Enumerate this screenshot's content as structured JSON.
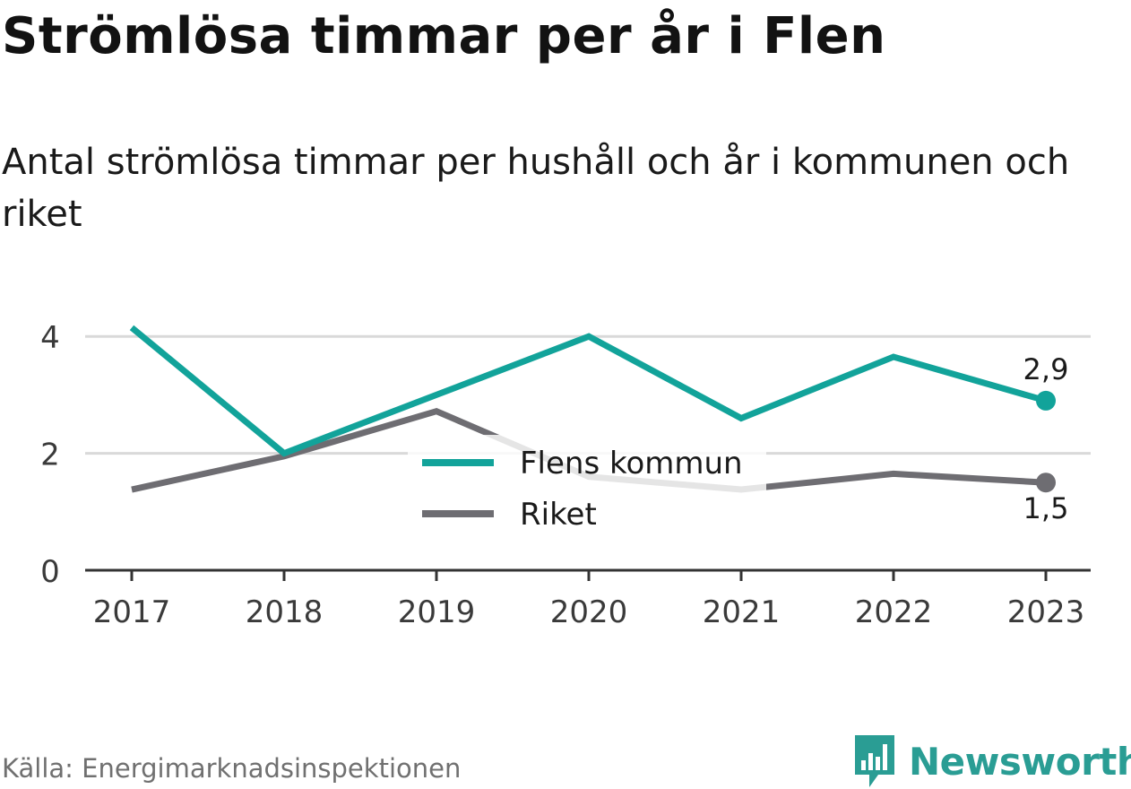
{
  "title": "Strömlösa timmar per år i Flen",
  "subtitle": "Antal strömlösa timmar per hushåll och år i kommunen och riket",
  "source": "Källa: Energimarknadsinspektionen",
  "brand": {
    "name": "Newsworthy",
    "logo_icon": "bar-chart-icon",
    "color": "#2a9d94"
  },
  "colors": {
    "flen": "#12a39a",
    "riket": "#6e6d72",
    "grid": "#d9d9d9",
    "axis": "#333333"
  },
  "chart_data": {
    "type": "line",
    "x": [
      "2017",
      "2018",
      "2019",
      "2020",
      "2021",
      "2022",
      "2023"
    ],
    "y_ticks": [
      "0",
      "2",
      "4"
    ],
    "ylim": [
      0,
      4.3
    ],
    "grid": true,
    "legend_position": "center",
    "series": [
      {
        "name": "Flens kommun",
        "values": [
          4.15,
          2.0,
          3.0,
          4.0,
          2.6,
          3.65,
          2.9
        ],
        "end_label": "2,9"
      },
      {
        "name": "Riket",
        "values": [
          1.38,
          1.95,
          2.72,
          1.6,
          1.38,
          1.65,
          1.5
        ],
        "end_label": "1,5"
      }
    ]
  }
}
